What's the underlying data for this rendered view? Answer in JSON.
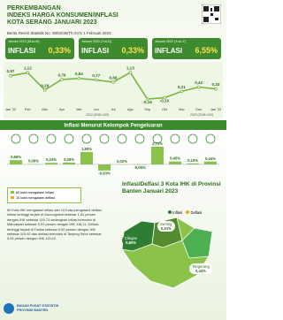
{
  "header": {
    "title_lines": [
      "PERKEMBANGAN",
      "INDEKS HARGA KONSUMEN/INFLASI",
      "KOTA SERANG JANUARI 2023"
    ],
    "release": "Berita Resmi Statistik No. 08/02/36/Th.XVII, 1 Februari 2023"
  },
  "boxes": [
    {
      "period": "Januari 2023 (M-to-M)",
      "label": "INFLASI",
      "value": "0,33%"
    },
    {
      "period": "Januari 2023 (Y-to-D)",
      "label": "INFLASI",
      "value": "0,33%"
    },
    {
      "period": "Januari 2023 (Y-on-Y)",
      "label": "INFLASI",
      "value": "6,55%"
    }
  ],
  "chart_data": [
    {
      "type": "line",
      "categories": [
        "Jan '22",
        "Feb",
        "Mar",
        "Apr",
        "Mei",
        "Jun",
        "Jul",
        "Agu",
        "Sep",
        "Okt",
        "Nov",
        "Des",
        "Jan '23"
      ],
      "values": [
        0.97,
        1.12,
        0.28,
        0.79,
        0.84,
        0.77,
        0.66,
        1.13,
        -0.16,
        -0.1,
        0.21,
        0.42,
        0.33
      ],
      "value_labels": [
        "0,97",
        "1,12",
        "0,28",
        "0,79",
        "0,84",
        "0,77",
        "0,66",
        "1,13",
        "-0,16",
        "-0,10",
        "0,21",
        "0,42",
        "0,33"
      ],
      "color": "#7cb342",
      "period_labels": [
        "2022 (2018=100)",
        "2023 (2018=100)"
      ]
    },
    {
      "type": "bar",
      "title": "Inflasi Menurut Kelompok Pengeluaran",
      "categories": [
        null,
        null,
        null,
        null,
        null,
        null,
        null,
        null,
        null,
        null,
        null,
        null
      ],
      "values": [
        0.66,
        0.06,
        0.24,
        0.29,
        1.9,
        -0.93,
        0.02,
        -0.06,
        2.71,
        0.45,
        0.15,
        0.44
      ],
      "value_labels": [
        "0,66%",
        "0,06%",
        "0,24%",
        "0,29%",
        "1,90%",
        "-0,93%",
        "0,02%",
        "-0,06%",
        "2,71%",
        "0,45%",
        "0,15%",
        "0,44%"
      ],
      "color": "#8bc34a"
    }
  ],
  "legend_box": [
    "60 kota mengalami inflasi",
    "10 kota mengalami deflasi"
  ],
  "summary": "60 Kota IHK mengalami inflasi dan 10 Kota mengalami deflasi. Inflasi tertinggi terjadi di Gunungsitoli sebesar 1,81 persen dengan IHK sebesar 116,73 sedangkan inflasi terendah di Manokwari sebesar 0,03 persen dengan IHK 118,11. Deflasi tertinggi terjadi di Timika sebesar 0,50 persen dengan IHK sebesar 119,92 dan deflasi terendah di Tanjung Selor sebesar 0,04 persen dengan IHK 113,42.",
  "map": {
    "title": "Inflasi/Deflasi 3 Kota IHK di Provinsi Banten Januari 2023",
    "legend": [
      "Inflasi",
      "Deflasi"
    ],
    "cities": [
      {
        "name": "Serang",
        "value": "0,33%"
      },
      {
        "name": "Cilegon",
        "value": "0,80%"
      },
      {
        "name": "Tangerang",
        "value": "0,44%"
      }
    ]
  },
  "footer": [
    "BADAN PUSAT STATISTIK",
    "PROVINSI BANTEN"
  ]
}
